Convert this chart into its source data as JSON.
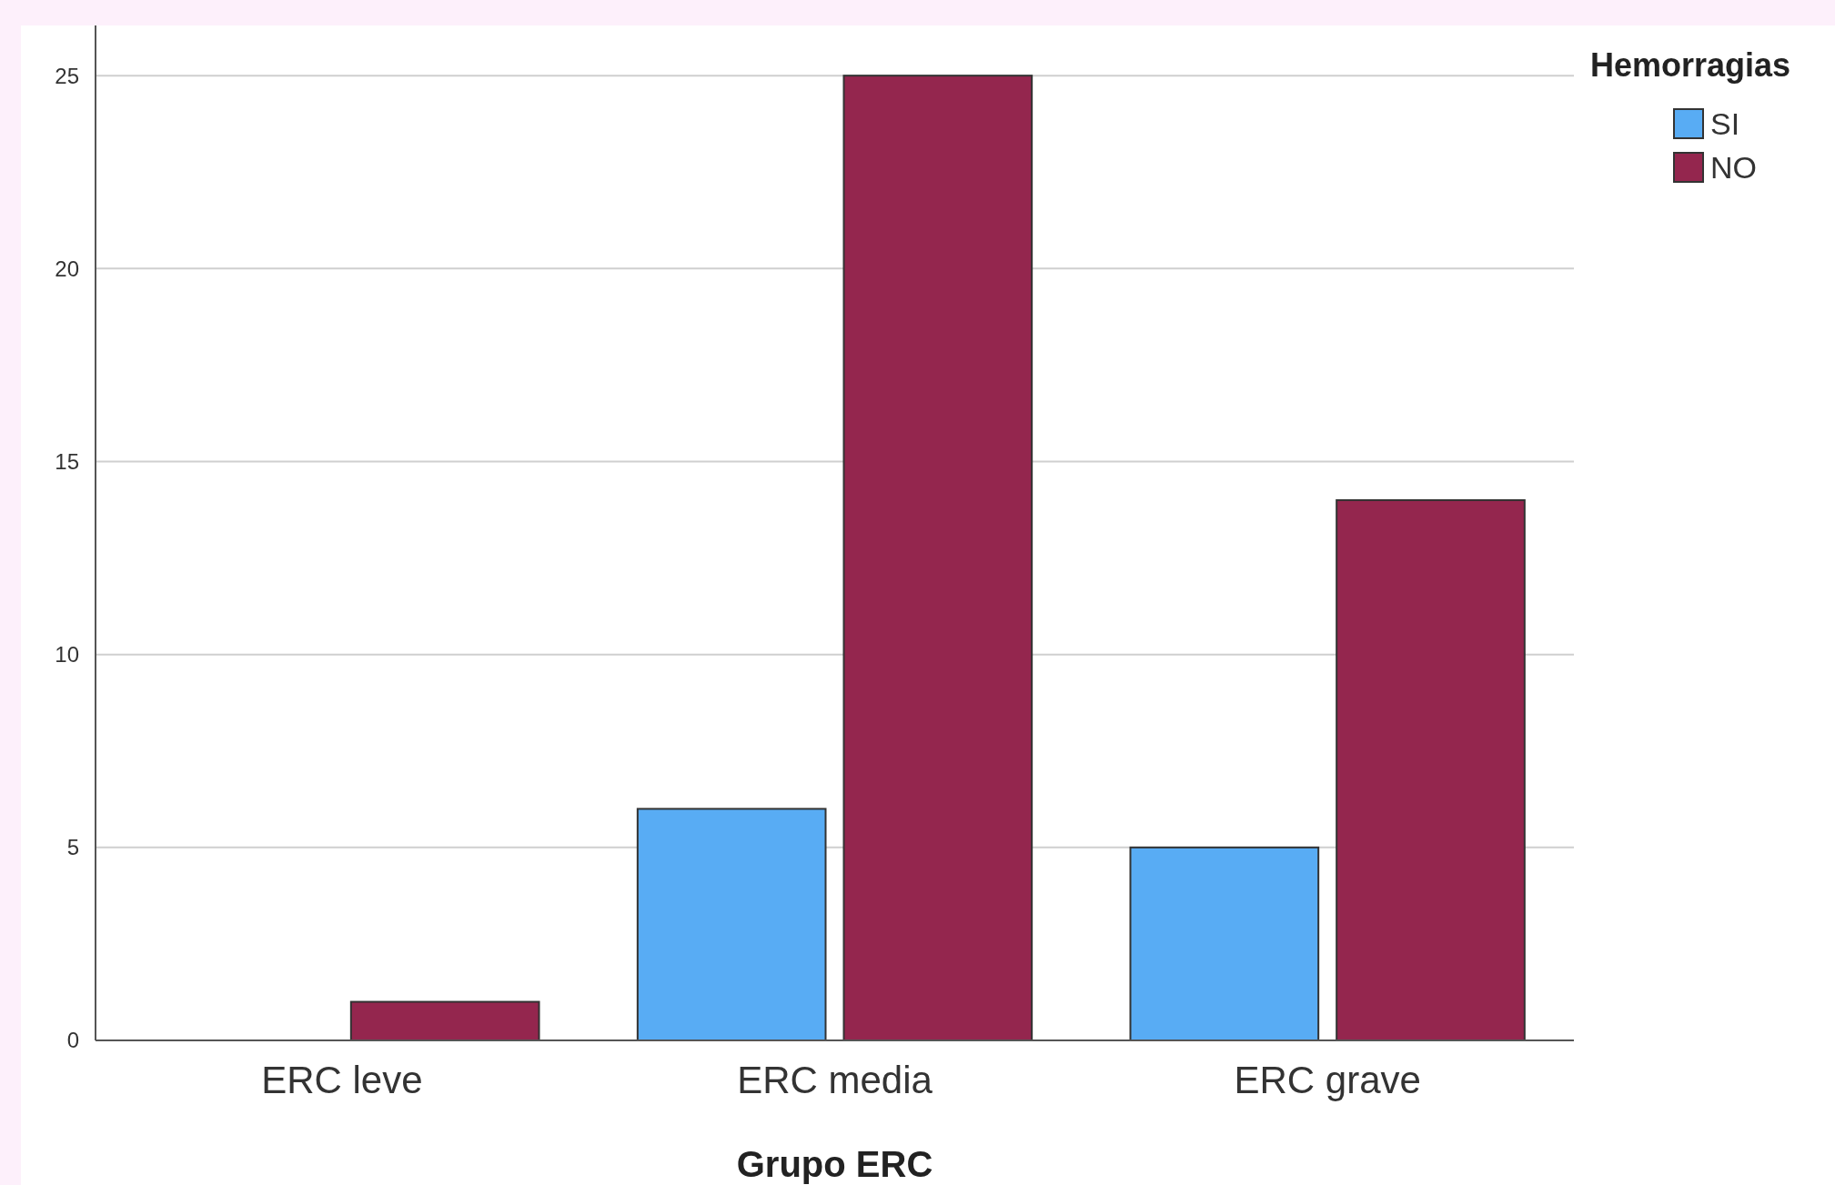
{
  "chart_data": {
    "type": "bar",
    "xlabel": "Grupo ERC",
    "legend_title": "Hemorragias",
    "categories": [
      "ERC leve",
      "ERC media",
      "ERC grave"
    ],
    "series": [
      {
        "name": "SI",
        "color": "#58acf4",
        "values": [
          0,
          6,
          5
        ]
      },
      {
        "name": "NO",
        "color": "#94264e",
        "values": [
          1,
          25,
          14
        ]
      }
    ],
    "ylim": [
      0,
      26.3
    ],
    "yticks": [
      0,
      5,
      10,
      15,
      20,
      25
    ],
    "grid": "y",
    "legend": "top right"
  }
}
